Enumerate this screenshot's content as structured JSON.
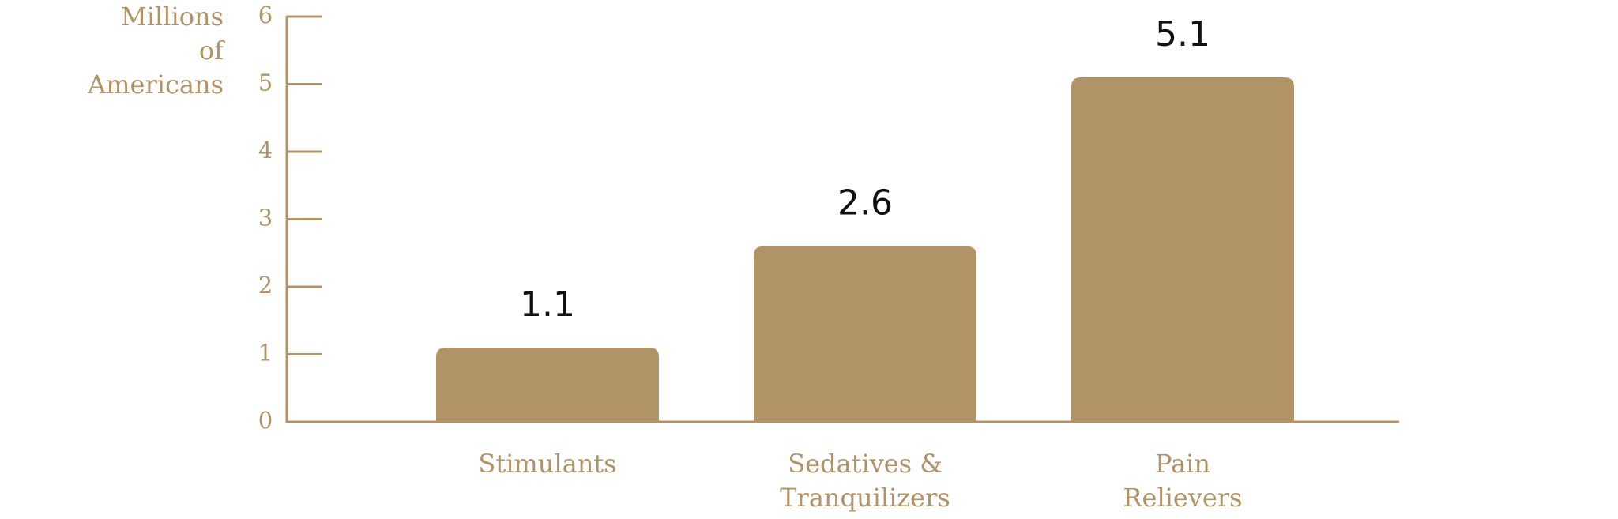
{
  "chart_data": {
    "type": "bar",
    "y_axis_label": "Millions\nof\nAmericans",
    "categories": [
      "Stimulants",
      "Sedatives &\nTranquilizers",
      "Pain\nRelievers"
    ],
    "values": [
      1.1,
      2.6,
      5.1
    ],
    "color": "#b09468",
    "ylim": [
      0,
      6
    ],
    "yticks": [
      0,
      1,
      2,
      3,
      4,
      5,
      6
    ],
    "grid": false
  }
}
